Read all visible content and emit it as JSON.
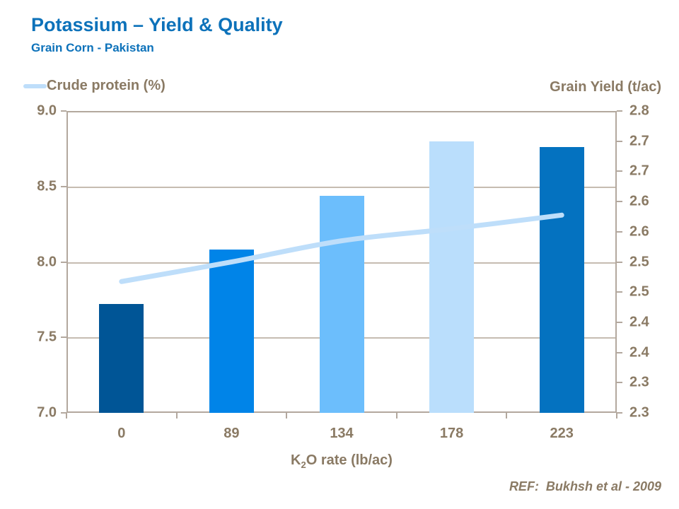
{
  "header": {
    "title": "Potassium – Yield & Quality",
    "subtitle": "Grain Corn - Pakistan"
  },
  "legend": {
    "crude_protein_label": "Crude protein (%)",
    "grain_yield_label": "Grain Yield (t/ac)"
  },
  "footer": {
    "ref": "REF:  Bukhsh et al - 2009"
  },
  "colors": {
    "title_blue": "#0D72BA",
    "axis_text": "#8A7A64",
    "axis_line": "#B3A89E",
    "gridline": "#C6BCB1",
    "line_color": "#BEDEFA"
  },
  "chart_data": {
    "type": "bar",
    "subtype": "combo-bar-line-dual-axis",
    "categories": [
      "0",
      "89",
      "134",
      "178",
      "223"
    ],
    "series": [
      {
        "name": "Grain Yield (t/ac)",
        "type": "bar",
        "axis": "right",
        "values": [
          2.48,
          2.57,
          2.66,
          2.75,
          2.74
        ],
        "bar_colors": [
          "#005596",
          "#0084E8",
          "#6CBEFC",
          "#BADEFC",
          "#0472C0"
        ]
      },
      {
        "name": "Crude protein (%)",
        "type": "line",
        "axis": "left",
        "values": [
          7.87,
          8.0,
          8.14,
          8.22,
          8.31
        ],
        "color": "#BEDEFA"
      }
    ],
    "title": "Potassium – Yield & Quality",
    "xlabel": "K2O rate (lb/ac)",
    "xlabel_parts": {
      "pre": "K",
      "sub": "2",
      "post": "O rate (lb/ac)"
    },
    "left_axis": {
      "label": "Crude protein (%)",
      "min": 7.0,
      "max": 9.0,
      "tick_step": 0.5,
      "tick_labels": [
        "9.0",
        "8.5",
        "8.0",
        "7.5",
        "7.0"
      ]
    },
    "right_axis": {
      "label": "Grain Yield (t/ac)",
      "min": 2.3,
      "max": 2.8,
      "tick_step": 0.05,
      "tick_labels": [
        "2.8",
        "2.7",
        "2.7",
        "2.6",
        "2.6",
        "2.5",
        "2.5",
        "2.4",
        "2.4",
        "2.3",
        "2.3"
      ]
    },
    "grid": "horizontal",
    "legend_position": "top-left"
  }
}
